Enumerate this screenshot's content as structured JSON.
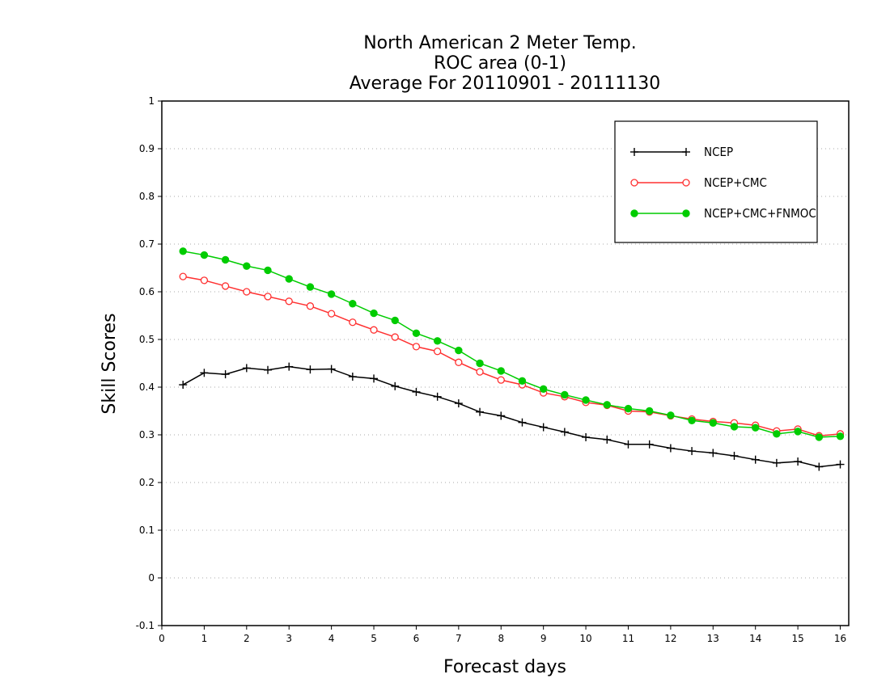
{
  "chart_data": {
    "type": "line",
    "title": [
      "North American 2 Meter Temp.",
      "ROC area (0-1)",
      "Average For 20110901 - 20111130"
    ],
    "xlabel": "Forecast days",
    "ylabel": "Skill Scores",
    "xlim": [
      0,
      16.2
    ],
    "ylim": [
      -0.1,
      1
    ],
    "xticks": [
      "0",
      "1",
      "2",
      "3",
      "4",
      "5",
      "6",
      "7",
      "8",
      "9",
      "10",
      "11",
      "12",
      "13",
      "14",
      "15",
      "16"
    ],
    "yticks": [
      "-0.1",
      "0",
      "0.1",
      "0.2",
      "0.3",
      "0.4",
      "0.5",
      "0.6",
      "0.7",
      "0.8",
      "0.9",
      "1"
    ],
    "grid": "horizontal dotted",
    "legend_position": "top-right",
    "x": [
      0.5,
      1,
      1.5,
      2,
      2.5,
      3,
      3.5,
      4,
      4.5,
      5,
      5.5,
      6,
      6.5,
      7,
      7.5,
      8,
      8.5,
      9,
      9.5,
      10,
      10.5,
      11,
      11.5,
      12,
      12.5,
      13,
      13.5,
      14,
      14.5,
      15,
      15.5,
      16
    ],
    "series": [
      {
        "name": "NCEP",
        "color": "#000000",
        "marker": "plus",
        "values": [
          0.405,
          0.43,
          0.427,
          0.44,
          0.436,
          0.443,
          0.437,
          0.438,
          0.422,
          0.418,
          0.402,
          0.39,
          0.38,
          0.366,
          0.348,
          0.34,
          0.326,
          0.316,
          0.306,
          0.295,
          0.29,
          0.28,
          0.28,
          0.272,
          0.266,
          0.262,
          0.256,
          0.248,
          0.241,
          0.244,
          0.233,
          0.238
        ]
      },
      {
        "name": "NCEP+CMC",
        "color": "#ff3030",
        "marker": "circle-open",
        "values": [
          0.632,
          0.624,
          0.612,
          0.6,
          0.59,
          0.58,
          0.57,
          0.554,
          0.536,
          0.52,
          0.505,
          0.485,
          0.475,
          0.452,
          0.432,
          0.415,
          0.405,
          0.388,
          0.38,
          0.368,
          0.362,
          0.35,
          0.348,
          0.34,
          0.333,
          0.328,
          0.325,
          0.32,
          0.308,
          0.312,
          0.298,
          0.302
        ]
      },
      {
        "name": "NCEP+CMC+FNMOC",
        "color": "#00cc00",
        "marker": "circle-filled",
        "values": [
          0.685,
          0.677,
          0.667,
          0.654,
          0.645,
          0.627,
          0.61,
          0.595,
          0.575,
          0.555,
          0.54,
          0.513,
          0.497,
          0.477,
          0.45,
          0.434,
          0.413,
          0.396,
          0.384,
          0.373,
          0.363,
          0.355,
          0.35,
          0.341,
          0.33,
          0.325,
          0.317,
          0.315,
          0.302,
          0.307,
          0.295,
          0.297
        ]
      }
    ]
  }
}
